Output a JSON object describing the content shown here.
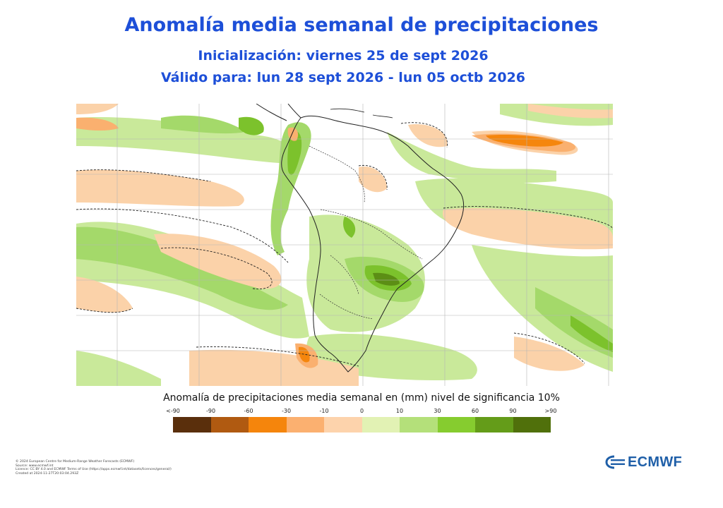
{
  "title": "Anomalía media semanal de precipitaciones",
  "subtitle_init": "Inicialización: viernes 25 de sept 2026",
  "subtitle_valid": "Válido para: lun 28 sept 2026 - lun 05 octb 2026",
  "legend": {
    "title": "Anomalía de precipitaciones media semanal en (mm) nivel de significancia 10%",
    "ticks": [
      "<-90",
      "-90",
      "-60",
      "-30",
      "-10",
      "0",
      "10",
      "30",
      "60",
      "90",
      ">90"
    ],
    "colors": [
      "#5a2f0c",
      "#b05a11",
      "#f5850c",
      "#fbb070",
      "#fdd3ac",
      "#e2f2b4",
      "#b4e07a",
      "#86cc2f",
      "#649c19",
      "#50700b"
    ]
  },
  "credits": [
    "© 2024 European Centre for Medium-Range Weather Forecasts (ECMWF)",
    "Source: www.ecmwf.int",
    "Licence: CC BY 4.0 and ECMWF Terms of Use (https://apps.ecmwf.int/datasets/licences/general/)",
    "Created at 2024-11-27T20:03:04.293Z"
  ],
  "logo_text": "ECMWF",
  "map": {
    "region": "South America",
    "graticule": true,
    "coastlines": true
  }
}
